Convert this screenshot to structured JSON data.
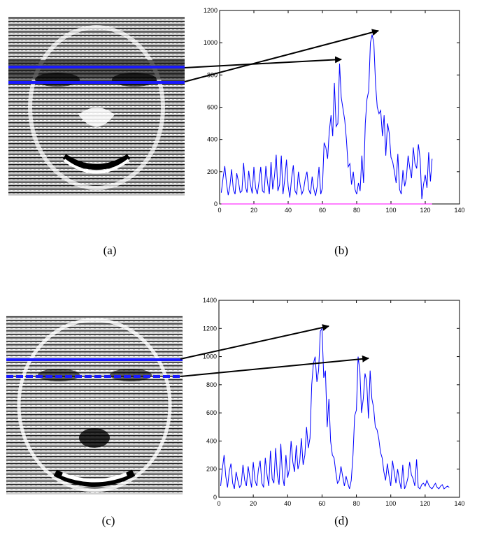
{
  "captions": [
    "(a)",
    "(b)",
    "(c)",
    "(d)"
  ],
  "colors": {
    "series": "#0000ff",
    "baseline": "#ff00ff",
    "arrow": "#000000",
    "scanline": "#1a1aff"
  },
  "figure_b": {
    "chart_data": {
      "type": "line",
      "xlim": [
        0,
        140
      ],
      "ylim": [
        0,
        1200
      ],
      "xticks": [
        0,
        20,
        40,
        60,
        80,
        100,
        120,
        140
      ],
      "yticks": [
        0,
        200,
        400,
        600,
        800,
        1000,
        1200
      ],
      "grid": false,
      "series": [
        {
          "x": [
            1,
            2,
            3,
            4,
            5,
            6,
            7,
            8,
            9,
            10,
            11,
            12,
            13,
            14,
            15,
            16,
            17,
            18,
            19,
            20,
            21,
            22,
            23,
            24,
            25,
            26,
            27,
            28,
            29,
            30,
            31,
            32,
            33,
            34,
            35,
            36,
            37,
            38,
            39,
            40,
            41,
            42,
            43,
            44,
            45,
            46,
            47,
            48,
            49,
            50,
            51,
            52,
            53,
            54,
            55,
            56,
            57,
            58,
            59,
            60,
            61,
            62,
            63,
            64,
            65,
            66,
            67,
            68,
            69,
            70,
            71,
            72,
            73,
            74,
            75,
            76,
            77,
            78,
            79,
            80,
            81,
            82,
            83,
            84,
            85,
            86,
            87,
            88,
            89,
            90,
            91,
            92,
            93,
            94,
            95,
            96,
            97,
            98,
            99,
            100,
            101,
            102,
            103,
            104,
            105,
            106,
            107,
            108,
            109,
            110,
            111,
            112,
            113,
            114,
            115,
            116,
            117,
            118,
            119,
            120,
            121,
            122,
            123,
            124
          ],
          "y": [
            70,
            160,
            235,
            130,
            55,
            110,
            215,
            90,
            60,
            190,
            140,
            70,
            80,
            255,
            110,
            70,
            205,
            120,
            65,
            230,
            100,
            60,
            140,
            230,
            80,
            70,
            235,
            130,
            60,
            260,
            90,
            170,
            305,
            80,
            120,
            300,
            60,
            150,
            275,
            110,
            40,
            160,
            240,
            80,
            60,
            200,
            120,
            60,
            90,
            160,
            200,
            90,
            60,
            170,
            90,
            50,
            110,
            230,
            60,
            100,
            380,
            350,
            280,
            450,
            550,
            420,
            750,
            480,
            500,
            870,
            660,
            590,
            520,
            400,
            230,
            250,
            120,
            200,
            90,
            60,
            130,
            80,
            300,
            130,
            500,
            650,
            700,
            1000,
            1050,
            1000,
            740,
            600,
            560,
            580,
            420,
            550,
            300,
            500,
            440,
            290,
            260,
            200,
            130,
            310,
            90,
            60,
            210,
            110,
            160,
            300,
            220,
            160,
            350,
            250,
            220,
            370,
            280,
            30,
            120,
            180,
            100,
            320,
            140,
            280
          ]
        }
      ]
    }
  },
  "figure_d": {
    "chart_data": {
      "type": "line",
      "xlim": [
        0,
        140
      ],
      "ylim": [
        0,
        1400
      ],
      "xticks": [
        0,
        20,
        40,
        60,
        80,
        100,
        120,
        140
      ],
      "yticks": [
        0,
        200,
        400,
        600,
        800,
        1000,
        1200,
        1400
      ],
      "grid": false,
      "series": [
        {
          "x": [
            1,
            2,
            3,
            4,
            5,
            6,
            7,
            8,
            9,
            10,
            11,
            12,
            13,
            14,
            15,
            16,
            17,
            18,
            19,
            20,
            21,
            22,
            23,
            24,
            25,
            26,
            27,
            28,
            29,
            30,
            31,
            32,
            33,
            34,
            35,
            36,
            37,
            38,
            39,
            40,
            41,
            42,
            43,
            44,
            45,
            46,
            47,
            48,
            49,
            50,
            51,
            52,
            53,
            54,
            55,
            56,
            57,
            58,
            59,
            60,
            61,
            62,
            63,
            64,
            65,
            66,
            67,
            68,
            69,
            70,
            71,
            72,
            73,
            74,
            75,
            76,
            77,
            78,
            79,
            80,
            81,
            82,
            83,
            84,
            85,
            86,
            87,
            88,
            89,
            90,
            91,
            92,
            93,
            94,
            95,
            96,
            97,
            98,
            99,
            100,
            101,
            102,
            103,
            104,
            105,
            106,
            107,
            108,
            109,
            110,
            111,
            112,
            113,
            114,
            115,
            116,
            117,
            118,
            119,
            120,
            121,
            122,
            123,
            124,
            125,
            126,
            127,
            128,
            129,
            130,
            131,
            132,
            133,
            134
          ],
          "y": [
            80,
            200,
            300,
            150,
            70,
            180,
            240,
            100,
            60,
            180,
            120,
            70,
            90,
            230,
            120,
            80,
            220,
            140,
            70,
            250,
            120,
            80,
            200,
            260,
            100,
            70,
            280,
            160,
            80,
            330,
            130,
            100,
            350,
            160,
            90,
            380,
            150,
            80,
            300,
            140,
            200,
            400,
            250,
            180,
            370,
            200,
            250,
            420,
            230,
            300,
            500,
            350,
            420,
            800,
            950,
            1000,
            820,
            900,
            1180,
            1200,
            850,
            900,
            500,
            700,
            400,
            300,
            280,
            180,
            100,
            120,
            220,
            150,
            80,
            150,
            100,
            60,
            120,
            300,
            580,
            620,
            1000,
            900,
            600,
            700,
            880,
            820,
            560,
            900,
            700,
            640,
            500,
            480,
            420,
            320,
            280,
            180,
            120,
            240,
            150,
            80,
            260,
            180,
            100,
            200,
            120,
            60,
            230,
            60,
            90,
            140,
            250,
            160,
            130,
            80,
            270,
            70,
            60,
            90,
            100,
            80,
            120,
            90,
            70,
            60,
            80,
            100,
            70,
            60,
            80,
            90,
            60,
            70,
            80,
            70
          ]
        }
      ]
    }
  }
}
